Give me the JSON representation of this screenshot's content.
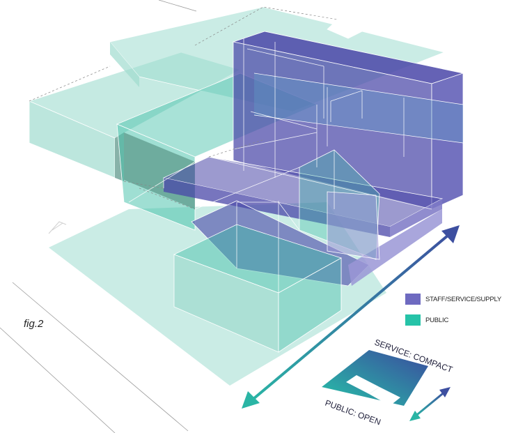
{
  "figure_label": "fig.2",
  "legend": {
    "items": [
      {
        "label": "STAFF/SERVICE/SUPPLY",
        "color": "#6e6ac0"
      },
      {
        "label": "PUBLIC",
        "color": "#26c3a8"
      }
    ]
  },
  "schematic": {
    "top_label": "SERVICE: COMPACT",
    "bottom_label": "PUBLIC: OPEN"
  },
  "colors": {
    "public": "#9fdccf",
    "public_strong": "#3fbfa7",
    "service": "#4a47a8",
    "service_light": "#7c78c6",
    "arrow_service": "#3d4fa0",
    "arrow_public": "#2ab5a5"
  }
}
